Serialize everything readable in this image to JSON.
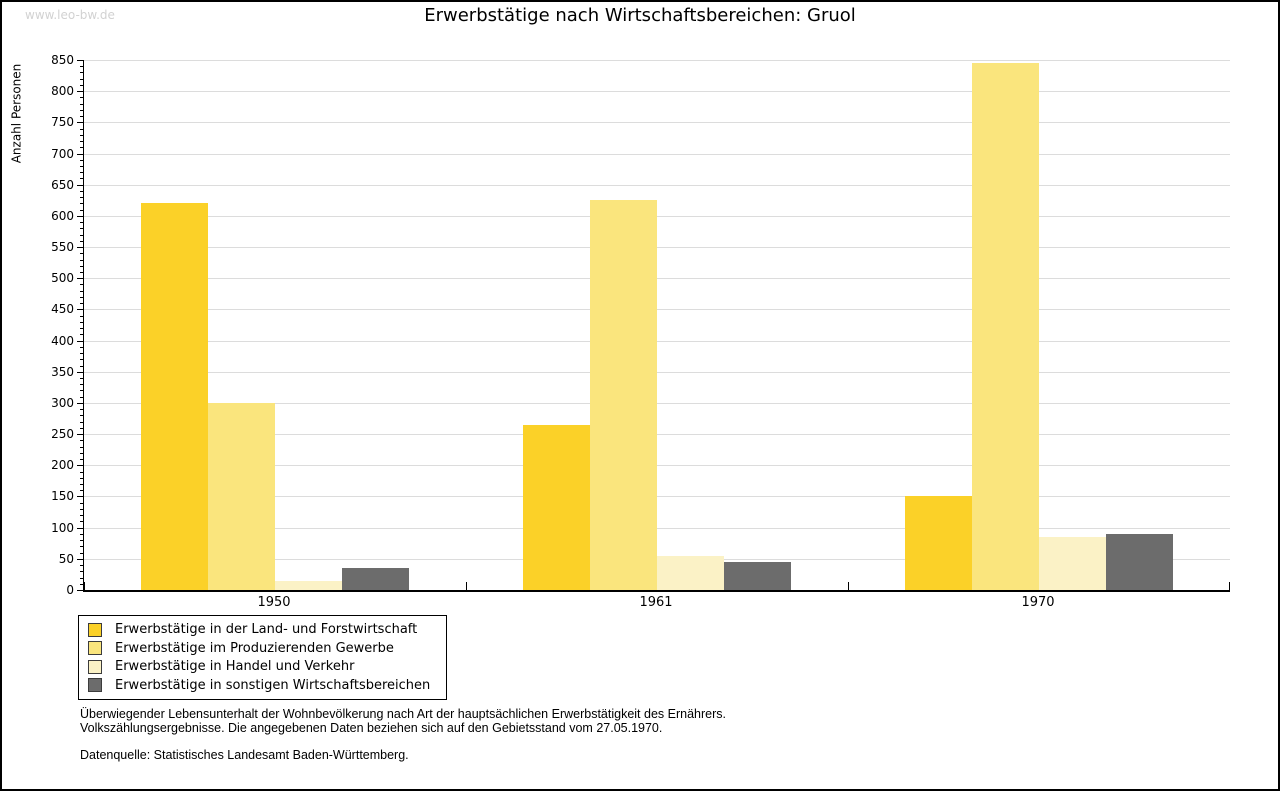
{
  "watermark": "www.leo-bw.de",
  "title": "Erwerbstätige nach Wirtschaftsbereichen: Gruol",
  "chart_data": {
    "type": "bar",
    "title": "Erwerbstätige nach Wirtschaftsbereichen: Gruol",
    "xlabel": "",
    "ylabel": "Anzahl Personen",
    "ylim": [
      0,
      850
    ],
    "ytick_step": 50,
    "yminor_step": 10,
    "grid": true,
    "legend_position": "bottom-left",
    "categories": [
      "1950",
      "1961",
      "1970"
    ],
    "series": [
      {
        "name": "Erwerbstätige in der Land- und Forstwirtschaft",
        "color": "#FBD128",
        "values": [
          620,
          265,
          150
        ]
      },
      {
        "name": "Erwerbstätige im Produzierenden Gewerbe",
        "color": "#FAE57D",
        "values": [
          300,
          625,
          845
        ]
      },
      {
        "name": "Erwerbstätige in Handel und Verkehr",
        "color": "#FBF2C6",
        "values": [
          15,
          55,
          85
        ]
      },
      {
        "name": "Erwerbstätige in sonstigen Wirtschaftsbereichen",
        "color": "#6C6C6C",
        "values": [
          35,
          45,
          90
        ]
      }
    ]
  },
  "footer": {
    "line1": "Überwiegender Lebensunterhalt der Wohnbevölkerung nach Art der hauptsächlichen Erwerbstätigkeit des Ernährers.",
    "line2": "Volkszählungsergebnisse. Die angegebenen Daten beziehen sich auf den Gebietsstand vom 27.05.1970.",
    "source": "Datenquelle: Statistisches Landesamt Baden-Württemberg."
  },
  "colors": {
    "grid": "#DCDCDC",
    "axis": "#000000",
    "watermark": "#D2D2D2"
  }
}
